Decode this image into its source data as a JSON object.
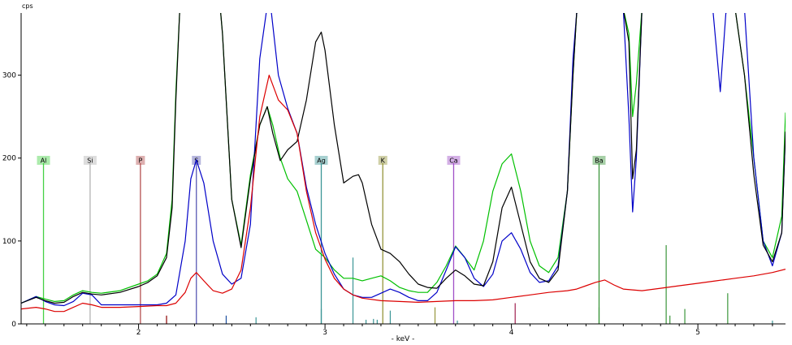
{
  "chart_data": {
    "type": "line",
    "title": "",
    "y_unit": "cps",
    "xlabel": "- keV -",
    "xlim": [
      1.37,
      5.47
    ],
    "ylim": [
      0,
      375
    ],
    "x_ticks": [
      {
        "value": 2,
        "label": "2"
      },
      {
        "value": 3,
        "label": "3"
      },
      {
        "value": 4,
        "label": "4"
      },
      {
        "value": 5,
        "label": "5"
      }
    ],
    "y_ticks": [
      {
        "value": 0,
        "label": "0"
      },
      {
        "value": 100,
        "label": "100"
      },
      {
        "value": 200,
        "label": "200"
      },
      {
        "value": 300,
        "label": "300"
      }
    ],
    "element_markers": [
      {
        "element": "Al",
        "energy": 1.49,
        "color": "#46d246"
      },
      {
        "element": "Si",
        "energy": 1.74,
        "color": "#b4b4b4"
      },
      {
        "element": "P",
        "energy": 2.01,
        "color": "#b45050"
      },
      {
        "element": "S",
        "energy": 2.31,
        "color": "#5a5ab4"
      },
      {
        "element": "Ag",
        "energy": 2.98,
        "color": "#3c9696"
      },
      {
        "element": "K",
        "energy": 3.31,
        "color": "#96963c"
      },
      {
        "element": "Ca",
        "energy": 3.69,
        "color": "#a050c8"
      },
      {
        "element": "Ba",
        "energy": 4.47,
        "color": "#3c963c"
      }
    ],
    "series": [
      {
        "color": "#00c000",
        "x": [
          1.37,
          1.45,
          1.5,
          1.55,
          1.6,
          1.65,
          1.7,
          1.75,
          1.8,
          1.9,
          2.0,
          2.05,
          2.1,
          2.15,
          2.18,
          2.2,
          2.22,
          2.24,
          2.3,
          2.35,
          2.4,
          2.45,
          2.5,
          2.55,
          2.6,
          2.65,
          2.69,
          2.72,
          2.76,
          2.8,
          2.85,
          2.9,
          2.95,
          3.0,
          3.05,
          3.1,
          3.15,
          3.2,
          3.25,
          3.3,
          3.35,
          3.4,
          3.45,
          3.5,
          3.55,
          3.6,
          3.65,
          3.7,
          3.75,
          3.8,
          3.85,
          3.9,
          3.95,
          4.0,
          4.05,
          4.1,
          4.15,
          4.2,
          4.25,
          4.3,
          4.33,
          4.35,
          4.4,
          4.45,
          4.5,
          4.55,
          4.6,
          4.63,
          4.65,
          4.67,
          4.7,
          4.75,
          4.8,
          4.85,
          4.9,
          4.95,
          5.0,
          5.05,
          5.1,
          5.15,
          5.2,
          5.25,
          5.3,
          5.35,
          5.4,
          5.45,
          5.47
        ],
        "y": [
          25,
          33,
          30,
          27,
          28,
          35,
          40,
          38,
          37,
          40,
          48,
          52,
          60,
          85,
          150,
          280,
          375,
          380,
          420,
          480,
          480,
          350,
          150,
          95,
          180,
          240,
          262,
          240,
          200,
          175,
          160,
          125,
          90,
          80,
          65,
          55,
          55,
          52,
          55,
          58,
          52,
          44,
          40,
          38,
          38,
          50,
          70,
          94,
          80,
          65,
          100,
          160,
          193,
          205,
          160,
          100,
          70,
          62,
          80,
          160,
          300,
          375,
          380,
          380,
          380,
          380,
          380,
          350,
          250,
          290,
          380,
          380,
          380,
          380,
          380,
          380,
          380,
          380,
          380,
          380,
          380,
          300,
          200,
          100,
          80,
          130,
          255
        ]
      },
      {
        "color": "#0000c8",
        "x": [
          1.37,
          1.45,
          1.5,
          1.55,
          1.6,
          1.65,
          1.7,
          1.75,
          1.8,
          1.9,
          2.0,
          2.05,
          2.1,
          2.15,
          2.2,
          2.25,
          2.28,
          2.31,
          2.35,
          2.4,
          2.45,
          2.5,
          2.55,
          2.6,
          2.65,
          2.7,
          2.75,
          2.8,
          2.85,
          2.9,
          2.95,
          3.0,
          3.05,
          3.1,
          3.15,
          3.2,
          3.25,
          3.3,
          3.35,
          3.4,
          3.45,
          3.5,
          3.55,
          3.6,
          3.65,
          3.7,
          3.75,
          3.8,
          3.85,
          3.9,
          3.95,
          4.0,
          4.05,
          4.1,
          4.15,
          4.2,
          4.25,
          4.3,
          4.33,
          4.35,
          4.4,
          4.45,
          4.5,
          4.55,
          4.6,
          4.63,
          4.65,
          4.67,
          4.7,
          4.75,
          4.8,
          4.85,
          4.9,
          4.95,
          5.0,
          5.05,
          5.08,
          5.12,
          5.15,
          5.2,
          5.25,
          5.3,
          5.35,
          5.4,
          5.45,
          5.47
        ],
        "y": [
          25,
          33,
          27,
          23,
          22,
          27,
          37,
          35,
          23,
          23,
          23,
          23,
          23,
          25,
          35,
          100,
          175,
          198,
          170,
          100,
          60,
          48,
          55,
          120,
          320,
          400,
          300,
          260,
          230,
          165,
          120,
          85,
          60,
          42,
          35,
          32,
          32,
          37,
          42,
          38,
          32,
          28,
          28,
          38,
          65,
          93,
          80,
          55,
          45,
          60,
          100,
          110,
          90,
          62,
          50,
          52,
          70,
          160,
          320,
          375,
          380,
          380,
          380,
          380,
          380,
          250,
          135,
          200,
          380,
          380,
          380,
          380,
          380,
          380,
          380,
          380,
          380,
          280,
          375,
          380,
          380,
          200,
          100,
          70,
          110,
          230
        ]
      },
      {
        "color": "#000000",
        "x": [
          1.37,
          1.45,
          1.5,
          1.55,
          1.6,
          1.65,
          1.7,
          1.75,
          1.8,
          1.9,
          2.0,
          2.05,
          2.1,
          2.15,
          2.18,
          2.2,
          2.22,
          2.24,
          2.3,
          2.35,
          2.4,
          2.45,
          2.5,
          2.55,
          2.6,
          2.65,
          2.69,
          2.72,
          2.76,
          2.8,
          2.85,
          2.9,
          2.95,
          2.98,
          3.0,
          3.05,
          3.1,
          3.15,
          3.18,
          3.2,
          3.25,
          3.3,
          3.35,
          3.4,
          3.45,
          3.5,
          3.55,
          3.6,
          3.65,
          3.7,
          3.75,
          3.8,
          3.85,
          3.9,
          3.95,
          4.0,
          4.05,
          4.1,
          4.15,
          4.2,
          4.25,
          4.3,
          4.33,
          4.35,
          4.4,
          4.45,
          4.5,
          4.55,
          4.6,
          4.63,
          4.65,
          4.67,
          4.7,
          4.75,
          4.8,
          4.85,
          4.9,
          4.95,
          5.0,
          5.05,
          5.1,
          5.15,
          5.2,
          5.25,
          5.3,
          5.35,
          5.4,
          5.45,
          5.47
        ],
        "y": [
          25,
          32,
          28,
          25,
          26,
          33,
          38,
          36,
          35,
          38,
          45,
          50,
          58,
          80,
          140,
          270,
          375,
          380,
          420,
          480,
          480,
          350,
          150,
          92,
          175,
          240,
          262,
          230,
          197,
          210,
          220,
          270,
          340,
          352,
          330,
          240,
          170,
          178,
          180,
          170,
          120,
          90,
          85,
          75,
          60,
          48,
          44,
          43,
          55,
          65,
          58,
          48,
          46,
          75,
          140,
          165,
          120,
          75,
          55,
          50,
          65,
          160,
          300,
          375,
          380,
          380,
          380,
          380,
          380,
          340,
          175,
          210,
          380,
          380,
          380,
          380,
          380,
          380,
          380,
          380,
          380,
          380,
          380,
          300,
          180,
          95,
          75,
          110,
          232
        ]
      },
      {
        "color": "#dc0000",
        "x": [
          1.37,
          1.45,
          1.5,
          1.55,
          1.6,
          1.65,
          1.7,
          1.75,
          1.8,
          1.9,
          2.0,
          2.1,
          2.15,
          2.2,
          2.25,
          2.28,
          2.31,
          2.35,
          2.4,
          2.45,
          2.5,
          2.55,
          2.6,
          2.65,
          2.7,
          2.75,
          2.8,
          2.85,
          2.9,
          2.95,
          3.0,
          3.05,
          3.1,
          3.15,
          3.2,
          3.3,
          3.4,
          3.5,
          3.6,
          3.7,
          3.8,
          3.9,
          4.0,
          4.1,
          4.2,
          4.3,
          4.35,
          4.4,
          4.45,
          4.5,
          4.55,
          4.6,
          4.7,
          4.8,
          4.9,
          5.0,
          5.1,
          5.2,
          5.3,
          5.4,
          5.47
        ],
        "y": [
          18,
          20,
          18,
          15,
          15,
          20,
          25,
          23,
          20,
          20,
          21,
          22,
          22,
          25,
          38,
          55,
          62,
          52,
          40,
          37,
          42,
          65,
          140,
          250,
          300,
          270,
          258,
          230,
          160,
          110,
          78,
          55,
          42,
          35,
          31,
          28,
          27,
          26,
          27,
          28,
          28,
          29,
          32,
          35,
          38,
          40,
          42,
          46,
          50,
          53,
          47,
          42,
          40,
          43,
          46,
          49,
          52,
          55,
          58,
          62,
          66
        ]
      }
    ],
    "stick_lines": [
      {
        "x": 2.15,
        "y": 10,
        "color": "#8b0000"
      },
      {
        "x": 2.47,
        "y": 10,
        "color": "#1e50a0"
      },
      {
        "x": 2.63,
        "y": 8,
        "color": "#3c9696"
      },
      {
        "x": 2.98,
        "y": 18,
        "color": "#3c9696"
      },
      {
        "x": 3.15,
        "y": 80,
        "color": "#3c9696"
      },
      {
        "x": 3.22,
        "y": 5,
        "color": "#3c9696"
      },
      {
        "x": 3.26,
        "y": 6,
        "color": "#3c9696"
      },
      {
        "x": 3.28,
        "y": 5,
        "color": "#3c9696"
      },
      {
        "x": 3.35,
        "y": 16,
        "color": "#3c9696"
      },
      {
        "x": 3.59,
        "y": 20,
        "color": "#96963c"
      },
      {
        "x": 3.71,
        "y": 4,
        "color": "#3c9696"
      },
      {
        "x": 4.02,
        "y": 25,
        "color": "#a02050"
      },
      {
        "x": 4.47,
        "y": 20,
        "color": "#3c963c"
      },
      {
        "x": 4.83,
        "y": 95,
        "color": "#3c963c"
      },
      {
        "x": 4.85,
        "y": 10,
        "color": "#3c963c"
      },
      {
        "x": 4.93,
        "y": 18,
        "color": "#3c963c"
      },
      {
        "x": 5.16,
        "y": 37,
        "color": "#3c963c"
      },
      {
        "x": 5.4,
        "y": 4,
        "color": "#3c9696"
      }
    ]
  }
}
